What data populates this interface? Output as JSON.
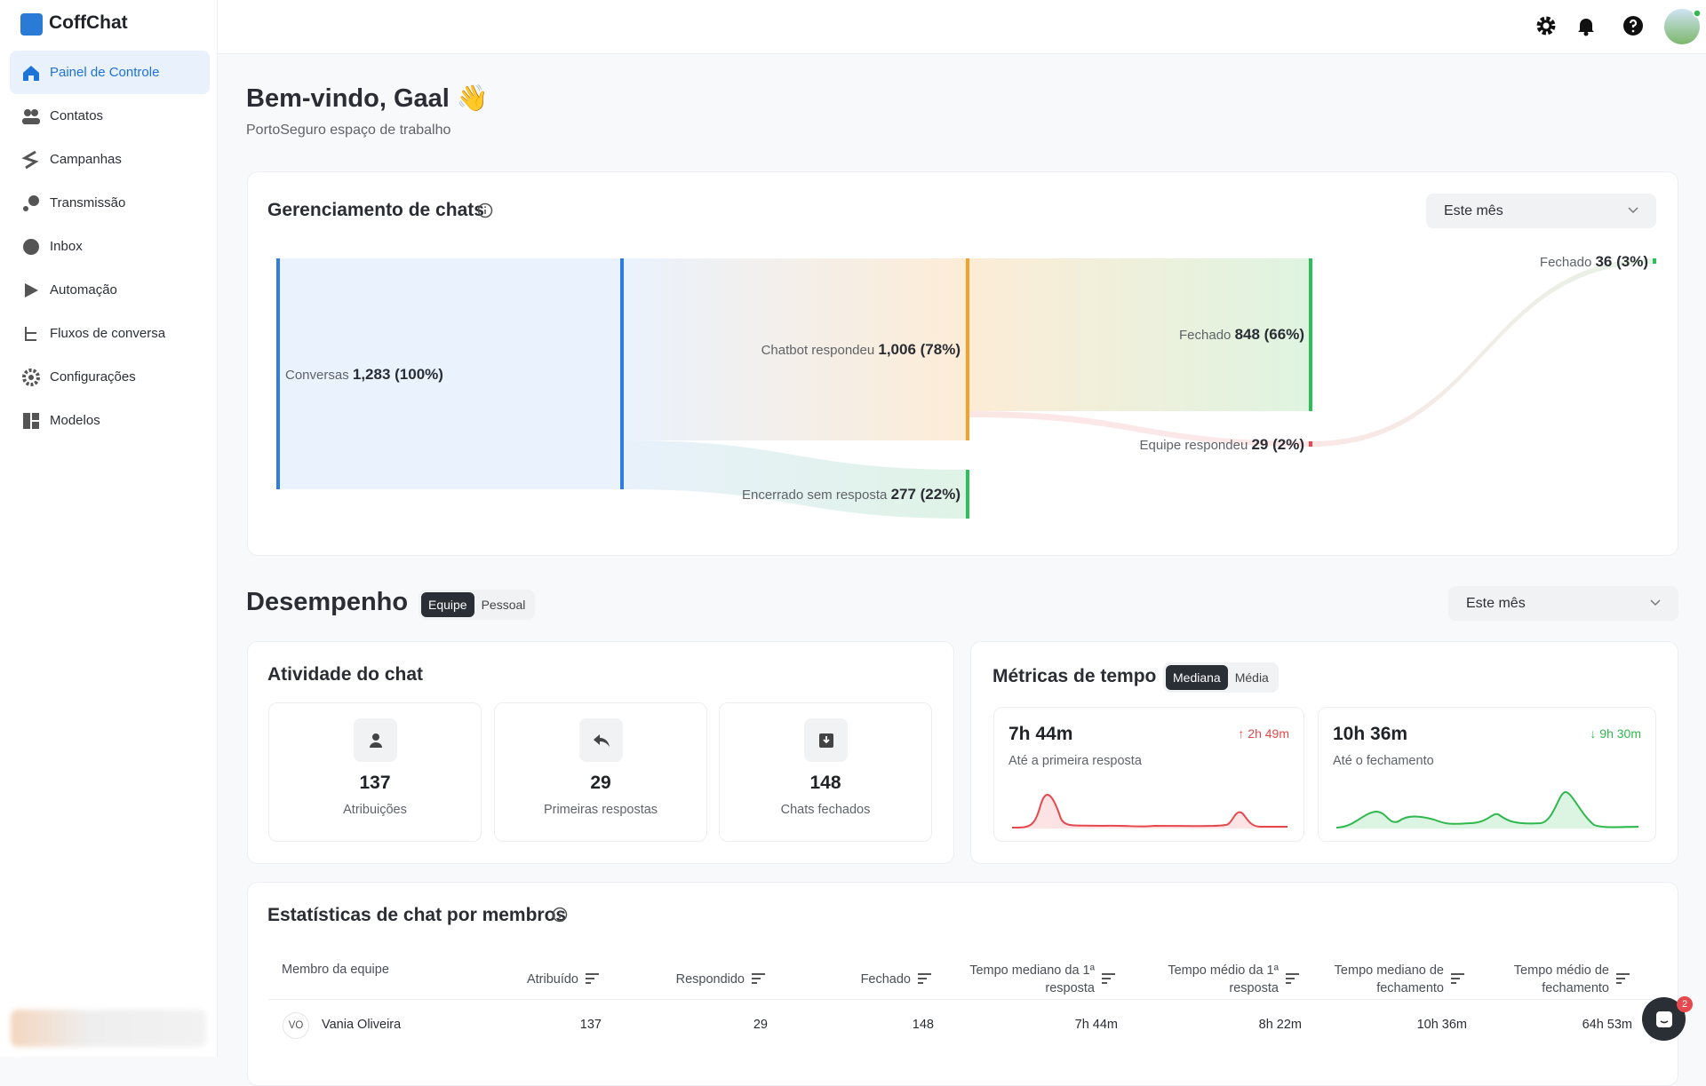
{
  "sidebar": {
    "brand": "CoffChat",
    "nav": [
      "Painel de Controle",
      "Contatos",
      "Campanhas",
      "Transmissão",
      "Inbox",
      "Automação",
      "Fluxos de conversa",
      "Configurações",
      "Modelos"
    ]
  },
  "header": {
    "title": "Bem-vindo, Gaal 👋",
    "subtitle": "PortoSeguro espaço de trabalho"
  },
  "chat_management": {
    "title": "Gerenciamento de chats",
    "period": "Este mês",
    "nodes": [
      {
        "label": "Conversas",
        "value": "1,283 (100%)"
      },
      {
        "label": "Chatbot respondeu",
        "value": "1,006 (78%)"
      },
      {
        "label": "Encerrado sem resposta",
        "value": "277 (22%)"
      },
      {
        "label": "Fechado",
        "value": "848 (66%)"
      },
      {
        "label": "Equipe respondeu",
        "value": "29 (2%)"
      },
      {
        "label": "Fechado",
        "value": "36 (3%)"
      }
    ]
  },
  "performance": {
    "title": "Desempenho",
    "tabs": [
      "Equipe",
      "Pessoal"
    ],
    "period": "Este mês"
  },
  "chat_activity": {
    "title": "Atividade do chat",
    "cards": [
      {
        "value": 137,
        "label": "Atribuições"
      },
      {
        "value": 29,
        "label": "Primeiras respostas"
      },
      {
        "value": 148,
        "label": "Chats fechados"
      }
    ]
  },
  "time_metrics": {
    "title": "Métricas de tempo",
    "tabs": [
      "Mediana",
      "Média"
    ],
    "cards": [
      {
        "value": "7h 44m",
        "change": "↑ 2h 49m",
        "label": "Até a primeira resposta"
      },
      {
        "value": "10h 36m",
        "change": "↓ 9h 30m",
        "label": "Até o fechamento"
      }
    ]
  },
  "member_stats": {
    "title": "Estatísticas de chat por membros",
    "columns": [
      "Membro da equipe",
      "Atribuído",
      "Respondido",
      "Fechado",
      "Tempo mediano da 1ª resposta",
      "Tempo médio da 1ª resposta",
      "Tempo mediano de fechamento",
      "Tempo médio de fechamento"
    ],
    "rows": [
      {
        "initials": "VO",
        "name": "Vania Oliveira",
        "cells": [
          137,
          29,
          148,
          "7h 44m",
          "8h 22m",
          "10h 36m",
          "64h 53m"
        ]
      }
    ]
  },
  "chat_widget": {
    "badge": 2
  }
}
